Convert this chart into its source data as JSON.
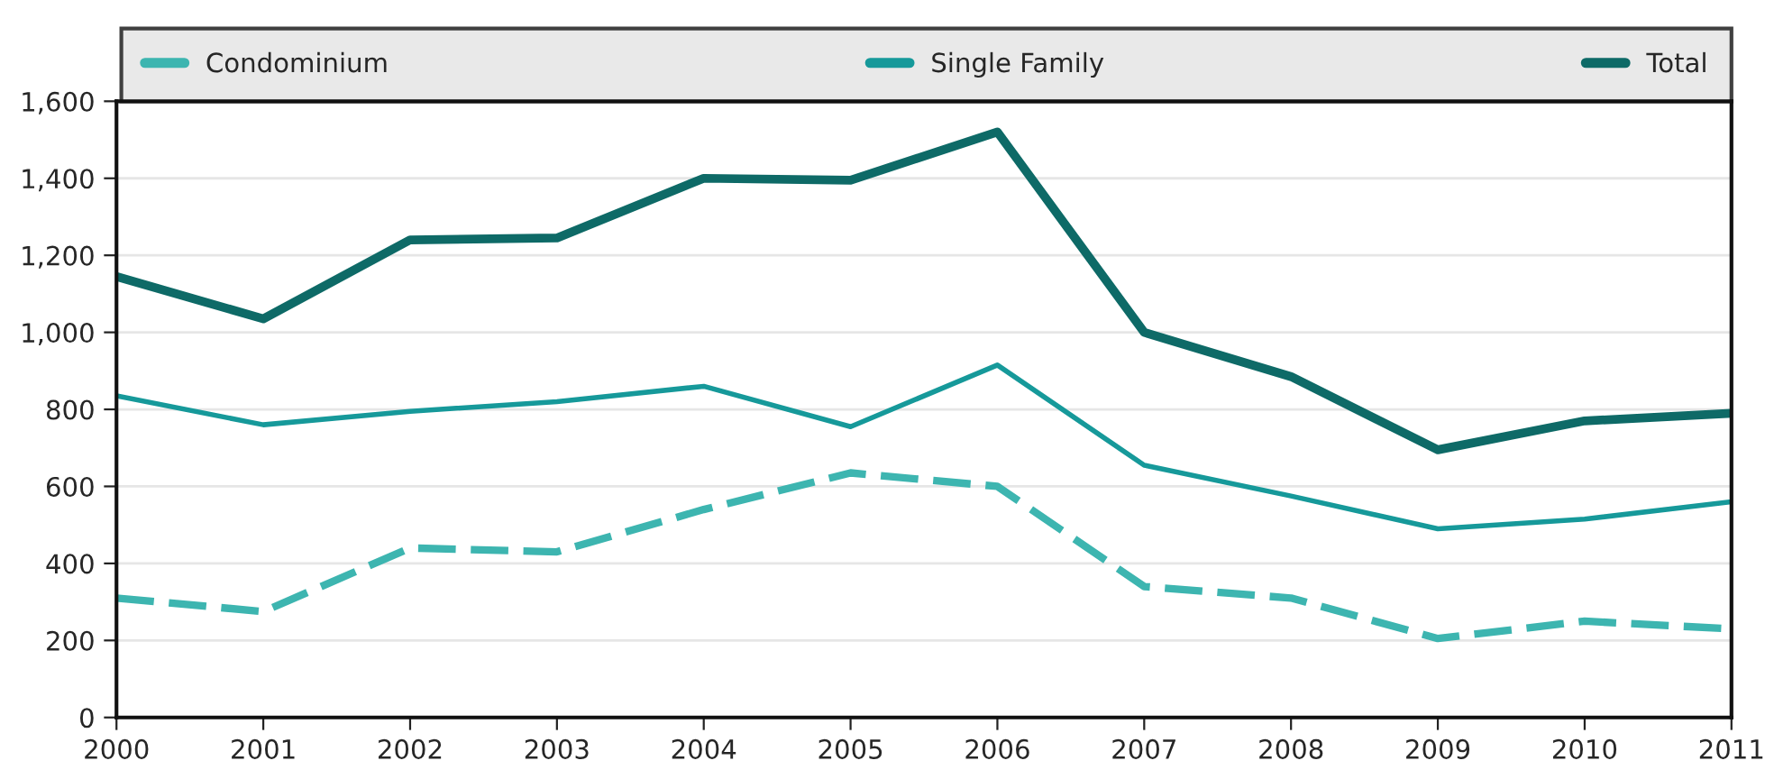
{
  "chart_data": {
    "type": "line",
    "x": [
      2000,
      2001,
      2002,
      2003,
      2004,
      2005,
      2006,
      2007,
      2008,
      2009,
      2010,
      2011
    ],
    "series": [
      {
        "name": "Condominium",
        "color": "#3db5b0",
        "line_style": "dashed",
        "values": [
          310,
          275,
          440,
          430,
          540,
          635,
          600,
          340,
          310,
          205,
          250,
          230
        ]
      },
      {
        "name": "Single Family",
        "color": "#16999a",
        "line_style": "solid",
        "values": [
          835,
          760,
          795,
          820,
          860,
          755,
          915,
          655,
          575,
          490,
          515,
          560
        ]
      },
      {
        "name": "Total",
        "color": "#0e6a67",
        "line_style": "solid",
        "values": [
          1145,
          1035,
          1240,
          1245,
          1400,
          1395,
          1520,
          1000,
          885,
          695,
          770,
          790
        ]
      }
    ],
    "xlim": [
      2000,
      2011
    ],
    "xticks": [
      2000,
      2001,
      2002,
      2003,
      2004,
      2005,
      2006,
      2007,
      2008,
      2009,
      2010,
      2011
    ],
    "ylim": [
      0,
      1600
    ],
    "yticks": [
      0,
      {
        "value": 200,
        "label": "200"
      },
      {
        "value": 400,
        "label": "400"
      },
      {
        "value": 600,
        "label": "600"
      },
      {
        "value": 800,
        "label": "800"
      },
      {
        "value": 1000,
        "label": "1,000"
      },
      {
        "value": 1200,
        "label": "1,200"
      },
      {
        "value": 1400,
        "label": "1,400"
      },
      {
        "value": 1600,
        "label": "1,600"
      }
    ],
    "grid": "y",
    "legend": "top"
  }
}
